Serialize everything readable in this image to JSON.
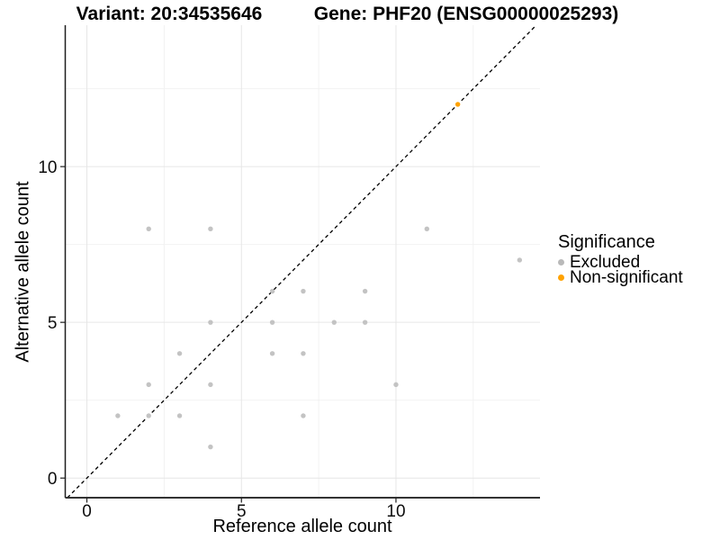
{
  "titles": {
    "variant": "Variant: 20:34535646",
    "gene": "Gene: PHF20 (ENSG00000025293)"
  },
  "chart_data": {
    "type": "scatter",
    "xlabel": "Reference allele count",
    "ylabel": "Alternative allele count",
    "xlim": [
      -0.7,
      14.66
    ],
    "ylim": [
      -0.63,
      14.54
    ],
    "x_ticks": [
      0,
      5,
      10
    ],
    "y_ticks": [
      0,
      5,
      10
    ],
    "x_minor": [
      2.5,
      7.5,
      12.5
    ],
    "y_minor": [
      2.5,
      7.5,
      12.5
    ],
    "grid": true,
    "identity_line": {
      "style": "dashed",
      "equation": "y = x",
      "color": "#000000"
    },
    "legend": {
      "title": "Significance",
      "position": "right",
      "items": [
        {
          "label": "Excluded",
          "color": "#b9b9b9"
        },
        {
          "label": "Non-significant",
          "color": "#ffa200"
        }
      ]
    },
    "series": [
      {
        "name": "Excluded",
        "color": "#c3c3c3",
        "points": [
          [
            1,
            2
          ],
          [
            2,
            2
          ],
          [
            2,
            3
          ],
          [
            2,
            8
          ],
          [
            3,
            2
          ],
          [
            3,
            4
          ],
          [
            4,
            1
          ],
          [
            4,
            3
          ],
          [
            4,
            5
          ],
          [
            4,
            8
          ],
          [
            6,
            4
          ],
          [
            6,
            5
          ],
          [
            6,
            6
          ],
          [
            7,
            2
          ],
          [
            7,
            4
          ],
          [
            7,
            6
          ],
          [
            8,
            5
          ],
          [
            9,
            5
          ],
          [
            9,
            6
          ],
          [
            10,
            3
          ],
          [
            11,
            8
          ],
          [
            14,
            7
          ]
        ]
      },
      {
        "name": "Non-significant",
        "color": "#ffa200",
        "points": [
          [
            12,
            12
          ]
        ]
      }
    ]
  }
}
